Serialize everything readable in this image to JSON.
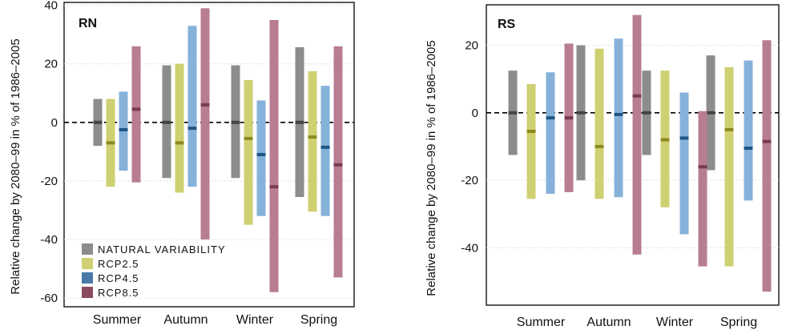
{
  "colors": {
    "natural_variability": "#8c8c8c",
    "rcp26_bar": "#cfd071",
    "rcp26_median": "#8c8a1e",
    "rcp45_bar": "#86b2da",
    "rcp45_median": "#1e5585",
    "rcp85_bar": "#b87d92",
    "rcp85_median": "#7a3a4f",
    "nv_median": "#444444"
  },
  "chart_data": [
    {
      "type": "bar",
      "panel_label": "RN",
      "ylabel": "Relative change by 2080–99 in % of 1986–2005",
      "ylim": [
        -63,
        41
      ],
      "yticks": [
        "40",
        "20",
        "0",
        "-20",
        "-40",
        "-60"
      ],
      "ytick_values": [
        40,
        20,
        0,
        -20,
        -40,
        -60
      ],
      "categories": [
        "Summer",
        "Autumn",
        "Winter",
        "Spring"
      ],
      "grid": "dotted horizontal",
      "zero_line": "dashed",
      "legend": {
        "placement": "bottom-left",
        "entries": [
          "NATURAL VARIABILITY",
          "RCP2.5",
          "RCP4.5",
          "RCP8.5"
        ]
      },
      "series": [
        {
          "name": "NATURAL VARIABILITY",
          "low": [
            -8,
            -19,
            -19,
            -25.5
          ],
          "high": [
            8,
            19.5,
            19.5,
            25.7
          ],
          "median": [
            0,
            0,
            0,
            0
          ]
        },
        {
          "name": "RCP2.5",
          "low": [
            -22,
            -24,
            -35,
            -30.5
          ],
          "high": [
            8,
            20,
            14.5,
            17.5
          ],
          "median": [
            -7,
            -7,
            -5.5,
            -5
          ]
        },
        {
          "name": "RCP4.5",
          "low": [
            -16.5,
            -22,
            -32,
            -32
          ],
          "high": [
            10.5,
            33,
            7.5,
            12.5
          ],
          "median": [
            -2.5,
            -2,
            -11,
            -8.5
          ]
        },
        {
          "name": "RCP8.5",
          "low": [
            -20.5,
            -40,
            -58,
            -53
          ],
          "high": [
            26,
            39,
            35,
            26
          ],
          "median": [
            4.5,
            6,
            -22,
            -14.5
          ]
        }
      ]
    },
    {
      "type": "bar",
      "panel_label": "RS",
      "ylabel": "Relative change by 2080–99 in % of 1986–2005",
      "ylim": [
        -57,
        32
      ],
      "yticks": [
        "20",
        "0",
        "-20",
        "-40"
      ],
      "ytick_values": [
        20,
        0,
        -20,
        -40
      ],
      "categories": [
        "Summer",
        "Autumn",
        "Winter",
        "Spring"
      ],
      "grid": "dotted horizontal",
      "zero_line": "dashed",
      "series": [
        {
          "name": "NATURAL VARIABILITY",
          "low": [
            -12.5,
            -20,
            -12.5,
            -17
          ],
          "high": [
            12.5,
            20,
            12.5,
            17
          ],
          "median": [
            0,
            0,
            0,
            0
          ]
        },
        {
          "name": "RCP2.5",
          "low": [
            -25.5,
            -25.5,
            -28,
            -45.5
          ],
          "high": [
            8.5,
            19,
            12.5,
            13.5
          ],
          "median": [
            -5.5,
            -10,
            -8,
            -5
          ]
        },
        {
          "name": "RCP4.5",
          "low": [
            -24,
            -25,
            -36,
            -26
          ],
          "high": [
            12,
            22,
            6,
            15.5
          ],
          "median": [
            -1.5,
            -0.5,
            -7.5,
            -10.5
          ]
        },
        {
          "name": "RCP8.5",
          "low": [
            -23.5,
            -42,
            -45.5,
            -53
          ],
          "high": [
            20.5,
            29,
            0.5,
            21.5
          ],
          "median": [
            -1.5,
            5,
            -16,
            -8.5
          ]
        }
      ]
    }
  ]
}
